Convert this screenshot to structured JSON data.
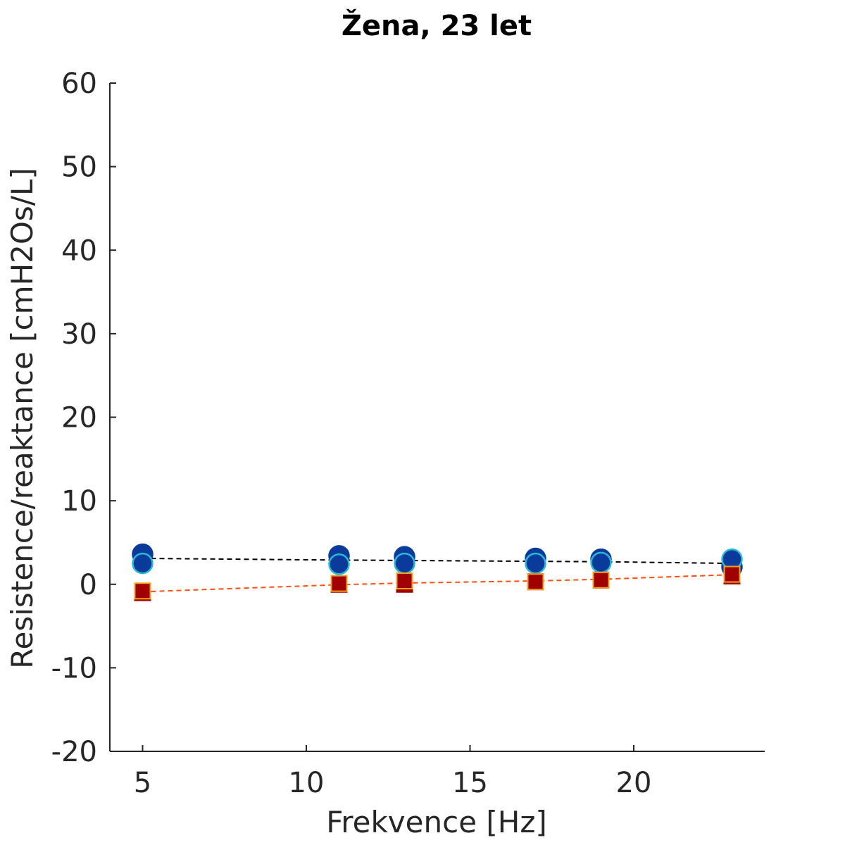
{
  "chart_data": {
    "type": "scatter",
    "title": "Žena, 23 let",
    "xlabel": "Frekvence [Hz]",
    "ylabel": "Resistence/reaktance [cmH2Os/L]",
    "xlim": [
      4,
      24
    ],
    "ylim": [
      -20,
      60
    ],
    "xticks": [
      5,
      10,
      15,
      20
    ],
    "yticks": [
      -20,
      -10,
      0,
      10,
      20,
      30,
      40,
      50,
      60
    ],
    "grid": false,
    "x": [
      5,
      11,
      13,
      17,
      19,
      23
    ],
    "series": [
      {
        "role": "resistance-points-dark",
        "marker": "circle",
        "color": "#0a3a9a",
        "edge": "#0a3a9a",
        "values": [
          3.6,
          3.4,
          3.3,
          3.1,
          3.0,
          2.1
        ]
      },
      {
        "role": "resistance-points-light",
        "marker": "circle",
        "color": "#0a3a9a",
        "edge": "#2bb8d8",
        "values": [
          2.5,
          2.4,
          2.5,
          2.5,
          2.6,
          3.0
        ]
      },
      {
        "role": "resistance-fit",
        "marker": "dashed-line",
        "color": "#000000",
        "values": [
          3.1,
          2.9,
          2.85,
          2.75,
          2.7,
          2.5
        ]
      },
      {
        "role": "reactance-points-dark",
        "marker": "square",
        "color": "#a00000",
        "edge": "#a00000",
        "values": [
          -1.0,
          0.0,
          0.0,
          0.3,
          0.5,
          1.0
        ]
      },
      {
        "role": "reactance-points-light",
        "marker": "square",
        "color": "#a00000",
        "edge": "#f0a020",
        "values": [
          -0.8,
          0.1,
          0.4,
          0.3,
          0.5,
          1.2
        ]
      },
      {
        "role": "reactance-fit",
        "marker": "dashed-line",
        "color": "#ff5010",
        "values": [
          -0.9,
          -0.05,
          0.15,
          0.4,
          0.6,
          1.15
        ]
      }
    ]
  }
}
